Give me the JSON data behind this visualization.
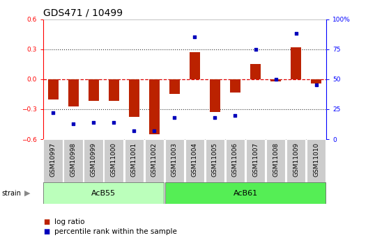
{
  "title": "GDS471 / 10499",
  "samples": [
    "GSM10997",
    "GSM10998",
    "GSM10999",
    "GSM11000",
    "GSM11001",
    "GSM11002",
    "GSM11003",
    "GSM11004",
    "GSM11005",
    "GSM11006",
    "GSM11007",
    "GSM11008",
    "GSM11009",
    "GSM11010"
  ],
  "log_ratio": [
    -0.2,
    -0.27,
    -0.22,
    -0.22,
    -0.38,
    -0.55,
    -0.15,
    0.27,
    -0.33,
    -0.13,
    0.15,
    -0.02,
    0.32,
    -0.04
  ],
  "percentile": [
    22,
    13,
    14,
    14,
    7,
    7,
    18,
    85,
    18,
    20,
    75,
    50,
    88,
    45
  ],
  "bar_color": "#bb2200",
  "dot_color": "#0000bb",
  "bg_color": "#ffffff",
  "plot_bg": "#ffffff",
  "ylim": [
    -0.6,
    0.6
  ],
  "y2lim": [
    0,
    100
  ],
  "yticks": [
    -0.6,
    -0.3,
    0.0,
    0.3,
    0.6
  ],
  "y2ticks": [
    0,
    25,
    50,
    75,
    100
  ],
  "hline_color": "#dd0000",
  "dotted_color": "#333333",
  "acb55_color": "#bbffbb",
  "acb61_color": "#55ee55",
  "sample_box_color": "#cccccc",
  "title_fontsize": 10,
  "tick_fontsize": 6.5,
  "label_fontsize": 7.5,
  "strain_arrow_color": "#888888"
}
